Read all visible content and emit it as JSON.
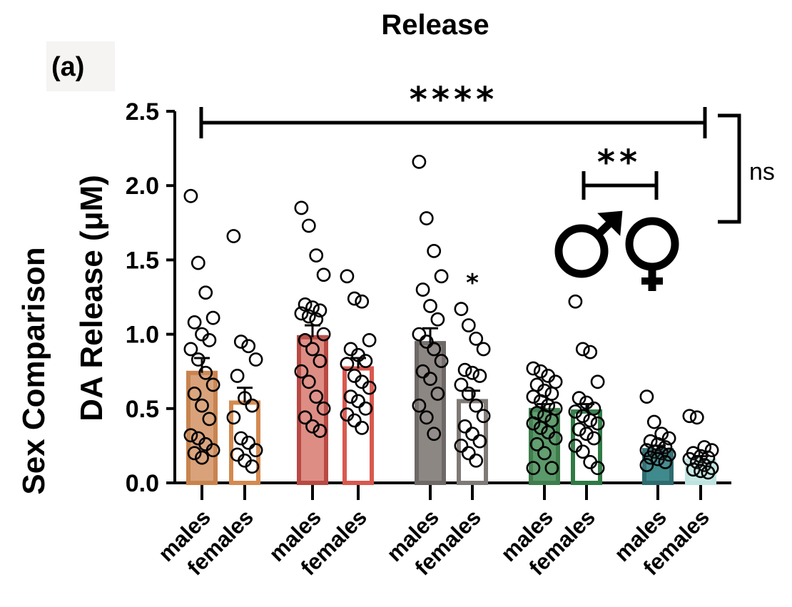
{
  "figure": {
    "title": "Release",
    "panel_label": "(a)"
  },
  "chart_data": {
    "type": "bar",
    "title": "Release",
    "ylabel_line1": "Sex Comparison",
    "ylabel_line2": "DA Release (μM)",
    "xlabel": "",
    "ylim": [
      0,
      2.5
    ],
    "yticks": [
      0.0,
      0.5,
      1.0,
      1.5,
      2.0,
      2.5
    ],
    "ytick_labels": [
      "0.0",
      "0.5",
      "1.0",
      "1.5",
      "2.0",
      "2.5"
    ],
    "categories": [
      "males",
      "females",
      "males",
      "females",
      "males",
      "females",
      "males",
      "females",
      "males",
      "females"
    ],
    "values": [
      0.74,
      0.54,
      0.98,
      0.77,
      0.94,
      0.55,
      0.49,
      0.48,
      0.22,
      0.15
    ],
    "sem": [
      0.1,
      0.1,
      0.08,
      0.07,
      0.1,
      0.07,
      0.04,
      0.05,
      0.03,
      0.03
    ],
    "colors": [
      "#c8834f",
      "#d38a50",
      "#b84a44",
      "#d9584e",
      "#6e6966",
      "#7f7a76",
      "#3f7d4c",
      "#2f7a45",
      "#2f6b70",
      "#bfe3df"
    ],
    "fill_colors": [
      "#d9a27a",
      "#ffffff",
      "#de8d84",
      "#ffffff",
      "#8d8784",
      "#ffffff",
      "#5b9a6a",
      "#ffffff",
      "#3f8a8d",
      "#c7eae5"
    ],
    "points": [
      [
        1.93,
        1.48,
        1.28,
        1.11,
        1.08,
        1.0,
        0.96,
        0.9,
        0.83,
        0.74,
        0.66,
        0.6,
        0.52,
        0.43,
        0.32,
        0.3,
        0.26,
        0.22,
        0.2,
        0.17
      ],
      [
        1.66,
        0.95,
        0.92,
        0.83,
        0.72,
        0.57,
        0.52,
        0.44,
        0.3,
        0.27,
        0.22,
        0.19,
        0.15,
        0.11
      ],
      [
        1.85,
        1.73,
        1.53,
        1.4,
        1.2,
        1.18,
        1.16,
        1.14,
        1.12,
        1.1,
        1.0,
        0.96,
        0.9,
        0.82,
        0.75,
        0.68,
        0.58,
        0.5,
        0.44,
        0.38,
        0.35
      ],
      [
        1.39,
        1.24,
        1.22,
        0.96,
        0.9,
        0.86,
        0.82,
        0.8,
        0.72,
        0.68,
        0.64,
        0.58,
        0.55,
        0.5,
        0.46,
        0.42,
        0.37
      ],
      [
        2.16,
        1.78,
        1.56,
        1.39,
        1.3,
        1.19,
        1.1,
        1.0,
        0.95,
        0.9,
        0.82,
        0.75,
        0.7,
        0.6,
        0.52,
        0.44,
        0.33
      ],
      [
        1.17,
        1.06,
        0.97,
        0.9,
        0.76,
        0.74,
        0.72,
        0.66,
        0.6,
        0.52,
        0.45,
        0.38,
        0.33,
        0.28,
        0.25,
        0.2,
        0.15
      ],
      [
        0.77,
        0.75,
        0.72,
        0.68,
        0.66,
        0.62,
        0.6,
        0.58,
        0.55,
        0.52,
        0.5,
        0.47,
        0.45,
        0.42,
        0.4,
        0.37,
        0.34,
        0.3,
        0.26,
        0.2,
        0.1,
        0.1
      ],
      [
        1.22,
        0.9,
        0.88,
        0.68,
        0.57,
        0.54,
        0.5,
        0.48,
        0.45,
        0.42,
        0.4,
        0.36,
        0.33,
        0.3,
        0.25,
        0.21,
        0.14,
        0.1
      ],
      [
        0.58,
        0.41,
        0.33,
        0.3,
        0.28,
        0.26,
        0.24,
        0.22,
        0.21,
        0.2,
        0.19,
        0.17,
        0.16,
        0.14,
        0.12
      ],
      [
        0.45,
        0.44,
        0.24,
        0.22,
        0.2,
        0.18,
        0.17,
        0.16,
        0.14,
        0.12,
        0.1,
        0.09,
        0.08,
        0.07
      ]
    ],
    "annotations": {
      "overall": "****",
      "group4_vs_group5_males": "**",
      "group3_females": "*",
      "bracket_right": "ns",
      "male_symbol": "♂",
      "female_symbol": "♀"
    },
    "grid": false,
    "legend": "none"
  }
}
